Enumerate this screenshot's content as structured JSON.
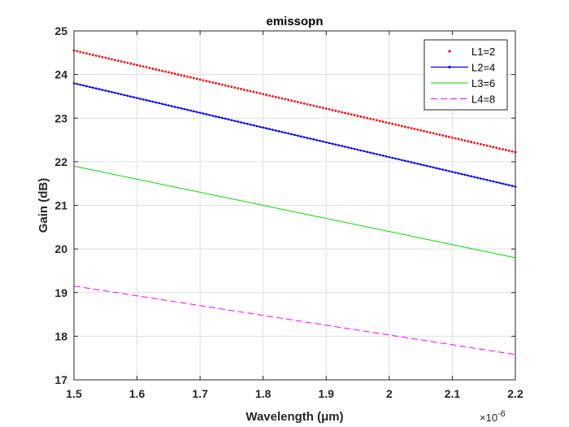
{
  "chart_data": {
    "type": "line",
    "title": "emissopn",
    "xlabel": "Wavelength (μm)",
    "ylabel": "Gain (dB)",
    "xlim": [
      1.5,
      2.2
    ],
    "ylim": [
      17,
      25
    ],
    "x_exponent_prefix": "×10",
    "x_exponent": "-6",
    "xticks": [
      "1.5",
      "1.6",
      "1.7",
      "1.8",
      "1.9",
      "2",
      "2.1",
      "2.2"
    ],
    "yticks": [
      "17",
      "18",
      "19",
      "20",
      "21",
      "22",
      "23",
      "24",
      "25"
    ],
    "grid": true,
    "legend_position": "top-right",
    "series": [
      {
        "name": "L1=2",
        "x": [
          1.5,
          2.2
        ],
        "y": [
          24.55,
          22.22
        ],
        "color": "#ff0000",
        "style": "dotted"
      },
      {
        "name": "L2=4",
        "x": [
          1.5,
          2.2
        ],
        "y": [
          23.8,
          21.43
        ],
        "color": "#0000ff",
        "style": "solid-dots"
      },
      {
        "name": "L3=6",
        "x": [
          1.5,
          2.2
        ],
        "y": [
          21.9,
          19.8
        ],
        "color": "#00dd00",
        "style": "solid"
      },
      {
        "name": "L4=8",
        "x": [
          1.5,
          2.2
        ],
        "y": [
          19.15,
          17.58
        ],
        "color": "#ff00ff",
        "style": "dashed"
      }
    ]
  }
}
